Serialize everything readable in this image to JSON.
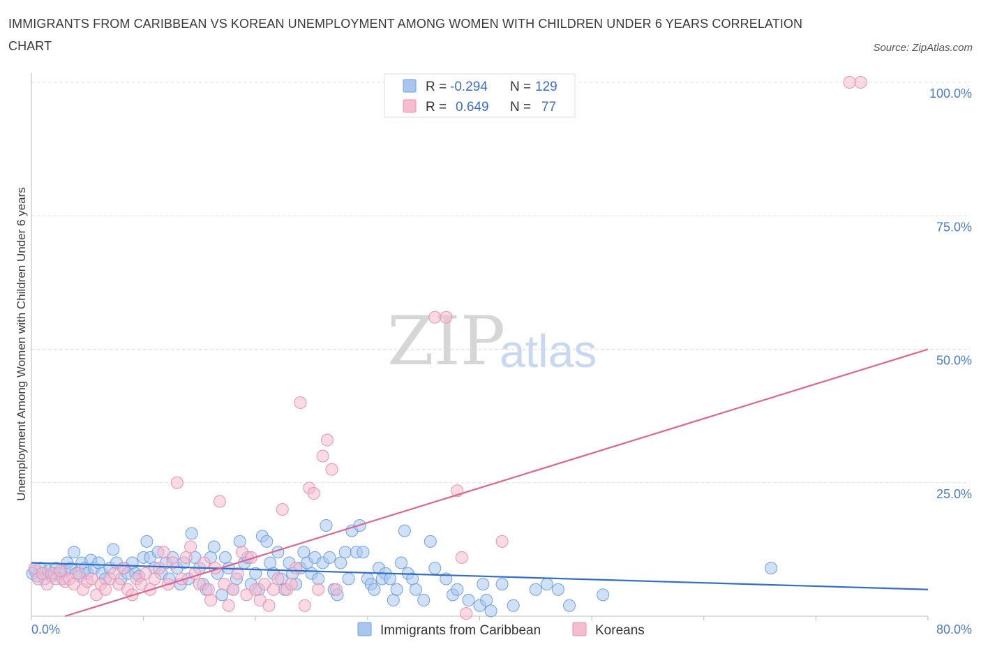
{
  "title": "IMMIGRANTS FROM CARIBBEAN VS KOREAN UNEMPLOYMENT AMONG WOMEN WITH CHILDREN UNDER 6 YEARS CORRELATION CHART",
  "source": "Source: ZipAtlas.com",
  "watermark": {
    "zip": "ZIP",
    "atlas": "atlas"
  },
  "colors": {
    "blue": "#6fa0e0",
    "blue_fill": "#a9c6ef",
    "blue_line": "#2f6fc9",
    "pink": "#ec8fb0",
    "pink_fill": "#f6bcd0",
    "pink_line": "#e0648f",
    "grid": "#dddddd",
    "tick_text": "#4a7bc8"
  },
  "legend": {
    "rows": [
      {
        "r_label": "R =",
        "r_value": "-0.294",
        "n_label": "N =",
        "n_value": "129"
      },
      {
        "r_label": "R =",
        "r_value": "0.649",
        "n_label": "N =",
        "n_value": "77"
      }
    ]
  },
  "chart_data": {
    "type": "scatter",
    "xlabel": "",
    "ylabel": "Unemployment Among Women with Children Under 6 years",
    "xlim": [
      0,
      80
    ],
    "ylim": [
      0,
      100
    ],
    "x_tick_labels": [
      {
        "value": 0,
        "label": "0.0%"
      },
      {
        "value": 80,
        "label": "80.0%"
      }
    ],
    "y_tick_labels": [
      {
        "value": 25,
        "label": "25.0%"
      },
      {
        "value": 50,
        "label": "50.0%"
      },
      {
        "value": 75,
        "label": "75.0%"
      },
      {
        "value": 100,
        "label": "100.0%"
      }
    ],
    "series": [
      {
        "name": "Immigrants from Caribbean",
        "R": -0.294,
        "N": 129,
        "trend": {
          "x": [
            0,
            80
          ],
          "y": [
            10.0,
            5.0
          ]
        },
        "points": [
          [
            0.3,
            8.5
          ],
          [
            0.5,
            7.5
          ],
          [
            0.8,
            9
          ],
          [
            1,
            8
          ],
          [
            1.2,
            7
          ],
          [
            1.5,
            8.5
          ],
          [
            1.8,
            7.5
          ],
          [
            2,
            8
          ],
          [
            2.2,
            9
          ],
          [
            2.5,
            8
          ],
          [
            2.8,
            7
          ],
          [
            3,
            8.5
          ],
          [
            3.2,
            10
          ],
          [
            3.5,
            9
          ],
          [
            3.8,
            12
          ],
          [
            4,
            8
          ],
          [
            4.3,
            7.5
          ],
          [
            4.5,
            10
          ],
          [
            4.8,
            9
          ],
          [
            5,
            8
          ],
          [
            5.3,
            10.5
          ],
          [
            5.6,
            9
          ],
          [
            6,
            10
          ],
          [
            6.3,
            8
          ],
          [
            6.6,
            7
          ],
          [
            7,
            9
          ],
          [
            7.3,
            12.5
          ],
          [
            7.6,
            10
          ],
          [
            8,
            7
          ],
          [
            8.3,
            9
          ],
          [
            8.6,
            8
          ],
          [
            9,
            10
          ],
          [
            9.3,
            8
          ],
          [
            9.6,
            7.5
          ],
          [
            10,
            11
          ],
          [
            10.3,
            14
          ],
          [
            10.6,
            11
          ],
          [
            11,
            9
          ],
          [
            11.3,
            12
          ],
          [
            11.6,
            8
          ],
          [
            12,
            10
          ],
          [
            12.3,
            7
          ],
          [
            12.6,
            11
          ],
          [
            13,
            9
          ],
          [
            13.3,
            6
          ],
          [
            13.6,
            10
          ],
          [
            14,
            7
          ],
          [
            14.3,
            15.5
          ],
          [
            14.6,
            11
          ],
          [
            15,
            9
          ],
          [
            15.3,
            6
          ],
          [
            15.6,
            5
          ],
          [
            16,
            11
          ],
          [
            16.3,
            13
          ],
          [
            16.6,
            8
          ],
          [
            17,
            4
          ],
          [
            17.3,
            11
          ],
          [
            17.6,
            9
          ],
          [
            18,
            5
          ],
          [
            18.3,
            7
          ],
          [
            18.6,
            14
          ],
          [
            19,
            10
          ],
          [
            19.3,
            11
          ],
          [
            19.6,
            6
          ],
          [
            20,
            8
          ],
          [
            20.3,
            5
          ],
          [
            20.6,
            15
          ],
          [
            21,
            14
          ],
          [
            21.3,
            10
          ],
          [
            21.6,
            8
          ],
          [
            22,
            12
          ],
          [
            22.3,
            7
          ],
          [
            22.6,
            5
          ],
          [
            23,
            10
          ],
          [
            23.3,
            8
          ],
          [
            23.6,
            6
          ],
          [
            24,
            9
          ],
          [
            24.3,
            12
          ],
          [
            24.6,
            10
          ],
          [
            25,
            8
          ],
          [
            25.3,
            11
          ],
          [
            25.6,
            7
          ],
          [
            26,
            10
          ],
          [
            26.3,
            17
          ],
          [
            26.6,
            11
          ],
          [
            27,
            5
          ],
          [
            27.3,
            4
          ],
          [
            27.6,
            10
          ],
          [
            28,
            12
          ],
          [
            28.3,
            7
          ],
          [
            28.6,
            16
          ],
          [
            29,
            12
          ],
          [
            29.3,
            17
          ],
          [
            29.6,
            12
          ],
          [
            30,
            7
          ],
          [
            30.3,
            6
          ],
          [
            30.6,
            5
          ],
          [
            31,
            9
          ],
          [
            31.3,
            7
          ],
          [
            31.6,
            8
          ],
          [
            32,
            7
          ],
          [
            32.3,
            3
          ],
          [
            32.6,
            5
          ],
          [
            33,
            10
          ],
          [
            33.3,
            16
          ],
          [
            33.6,
            8
          ],
          [
            34,
            7
          ],
          [
            34.3,
            5
          ],
          [
            35,
            3
          ],
          [
            35.6,
            14
          ],
          [
            36,
            9
          ],
          [
            37,
            7
          ],
          [
            37.6,
            4
          ],
          [
            38,
            5
          ],
          [
            39,
            3
          ],
          [
            40,
            2
          ],
          [
            40.3,
            6
          ],
          [
            40.6,
            3
          ],
          [
            41,
            1
          ],
          [
            42,
            6
          ],
          [
            43,
            2
          ],
          [
            45,
            5
          ],
          [
            46,
            6
          ],
          [
            47,
            5
          ],
          [
            48,
            2
          ],
          [
            51,
            4
          ],
          [
            66,
            9
          ],
          [
            0.1,
            8
          ]
        ]
      },
      {
        "name": "Koreans",
        "R": 0.649,
        "N": 77,
        "trend": {
          "x": [
            3,
            80
          ],
          "y": [
            0,
            50
          ]
        },
        "points": [
          [
            0.3,
            9
          ],
          [
            0.6,
            7
          ],
          [
            1,
            8
          ],
          [
            1.4,
            6
          ],
          [
            1.8,
            8
          ],
          [
            2.2,
            7
          ],
          [
            2.6,
            8.5
          ],
          [
            3,
            6.5
          ],
          [
            3.4,
            7
          ],
          [
            3.8,
            6
          ],
          [
            4.2,
            8
          ],
          [
            4.6,
            5
          ],
          [
            5,
            6.5
          ],
          [
            5.4,
            7
          ],
          [
            5.8,
            4
          ],
          [
            6.2,
            6
          ],
          [
            6.6,
            5
          ],
          [
            7,
            7
          ],
          [
            7.4,
            8
          ],
          [
            7.8,
            6
          ],
          [
            8.2,
            9
          ],
          [
            8.6,
            5
          ],
          [
            9,
            4
          ],
          [
            9.4,
            7
          ],
          [
            9.8,
            6
          ],
          [
            10.2,
            8
          ],
          [
            10.6,
            5
          ],
          [
            11,
            7
          ],
          [
            11.4,
            9
          ],
          [
            11.8,
            12
          ],
          [
            12.2,
            6
          ],
          [
            12.6,
            10
          ],
          [
            13,
            25
          ],
          [
            13.4,
            7
          ],
          [
            13.8,
            11
          ],
          [
            14.2,
            13
          ],
          [
            14.6,
            8
          ],
          [
            15,
            6
          ],
          [
            15.4,
            10
          ],
          [
            15.8,
            5
          ],
          [
            16,
            3
          ],
          [
            16.4,
            9
          ],
          [
            16.8,
            21.5
          ],
          [
            17.2,
            6
          ],
          [
            17.6,
            2
          ],
          [
            18,
            5
          ],
          [
            18.4,
            8
          ],
          [
            18.8,
            12
          ],
          [
            19.2,
            4
          ],
          [
            19.6,
            11
          ],
          [
            20,
            5
          ],
          [
            20.4,
            3
          ],
          [
            20.8,
            6
          ],
          [
            21.2,
            2
          ],
          [
            21.6,
            5
          ],
          [
            22,
            7
          ],
          [
            22.4,
            20
          ],
          [
            22.8,
            5
          ],
          [
            23.2,
            6
          ],
          [
            23.6,
            9
          ],
          [
            24,
            40
          ],
          [
            24.4,
            2
          ],
          [
            24.8,
            24
          ],
          [
            25.2,
            23
          ],
          [
            25.6,
            5
          ],
          [
            26,
            30
          ],
          [
            26.4,
            33
          ],
          [
            26.8,
            27.5
          ],
          [
            27.2,
            5
          ],
          [
            36,
            56
          ],
          [
            37,
            56
          ],
          [
            38,
            23.5
          ],
          [
            38.4,
            11
          ],
          [
            42,
            14
          ],
          [
            73,
            100
          ],
          [
            74,
            100
          ],
          [
            38.8,
            0.5
          ]
        ]
      }
    ]
  },
  "bottom_legend": [
    {
      "label": "Immigrants from Caribbean"
    },
    {
      "label": "Koreans"
    }
  ]
}
